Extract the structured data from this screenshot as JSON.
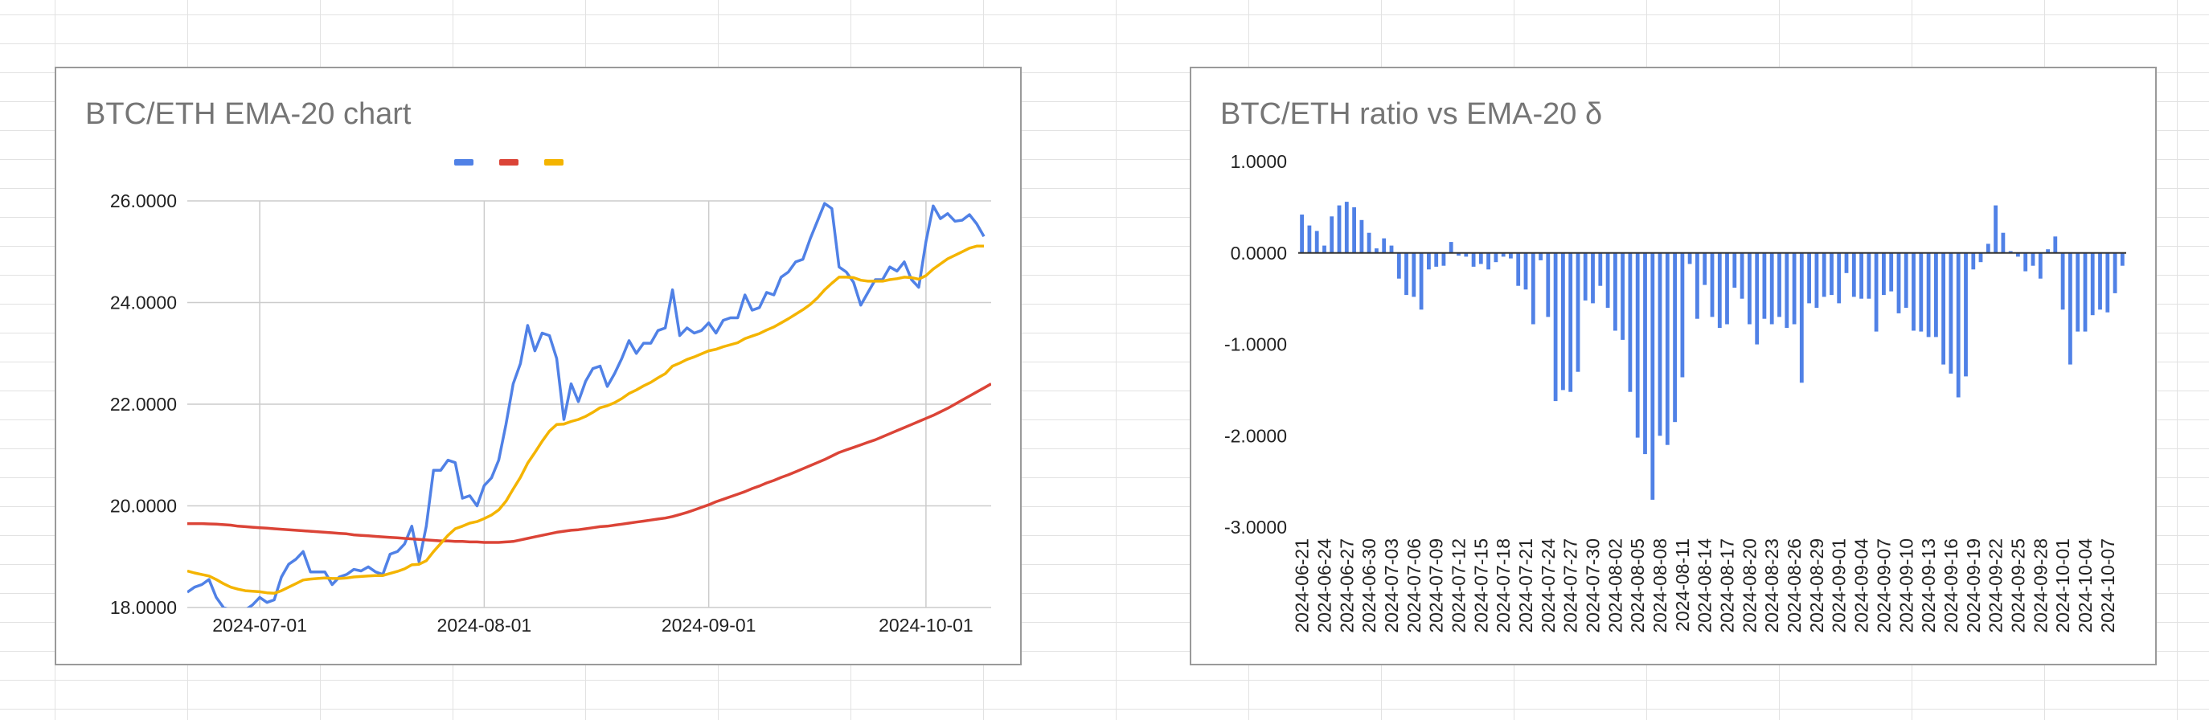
{
  "chart_data": [
    {
      "type": "line",
      "title": "BTC/ETH EMA-20 chart",
      "legend_position": "top-center",
      "legend_text_visible": false,
      "grid": true,
      "ylim": [
        18,
        26
      ],
      "yticks": [
        "18.0000",
        "20.0000",
        "22.0000",
        "24.0000",
        "26.0000"
      ],
      "xlim": [
        "2024-06-21",
        "2024-10-10"
      ],
      "xticks": [
        {
          "date": "2024-07-01",
          "label": "2024-07-01"
        },
        {
          "date": "2024-08-01",
          "label": "2024-08-01"
        },
        {
          "date": "2024-09-01",
          "label": "2024-09-01"
        },
        {
          "date": "2024-10-01",
          "label": "2024-10-01"
        }
      ],
      "dates_start": "2024-06-21",
      "series": [
        {
          "color": "#5081e6",
          "values": [
            18.3,
            18.4,
            18.45,
            18.55,
            18.2,
            18.0,
            17.95,
            17.9,
            17.95,
            18.05,
            18.2,
            18.1,
            18.15,
            18.6,
            18.85,
            18.95,
            19.1,
            18.7,
            18.7,
            18.7,
            18.45,
            18.6,
            18.65,
            18.75,
            18.72,
            18.8,
            18.7,
            18.65,
            19.05,
            19.1,
            19.25,
            19.6,
            18.9,
            19.6,
            20.7,
            20.7,
            20.9,
            20.85,
            20.15,
            20.2,
            20.0,
            20.4,
            20.55,
            20.9,
            21.6,
            22.4,
            22.8,
            23.55,
            23.05,
            23.4,
            23.35,
            22.9,
            21.7,
            22.4,
            22.05,
            22.45,
            22.7,
            22.75,
            22.35,
            22.6,
            22.9,
            23.25,
            23.0,
            23.2,
            23.2,
            23.45,
            23.5,
            24.25,
            23.35,
            23.5,
            23.4,
            23.45,
            23.6,
            23.4,
            23.65,
            23.7,
            23.7,
            24.15,
            23.85,
            23.9,
            24.2,
            24.15,
            24.5,
            24.6,
            24.8,
            24.85,
            25.25,
            25.6,
            25.95,
            25.85,
            24.7,
            24.6,
            24.4,
            23.95,
            24.2,
            24.45,
            24.45,
            24.7,
            24.62,
            24.8,
            24.45,
            24.3,
            25.2,
            25.9,
            25.65,
            25.75,
            25.6,
            25.62,
            25.73,
            25.55,
            25.3
          ],
          "ema_period": null
        },
        {
          "color": "#db4437",
          "values": [
            19.65,
            19.65,
            19.65,
            19.645,
            19.64,
            19.63,
            19.62,
            19.6,
            19.59,
            19.58,
            19.57,
            19.56,
            19.55,
            19.54,
            19.53,
            19.52,
            19.51,
            19.5,
            19.49,
            19.48,
            19.47,
            19.46,
            19.45,
            19.43,
            19.42,
            19.41,
            19.4,
            19.39,
            19.38,
            19.37,
            19.36,
            19.35,
            19.34,
            19.33,
            19.32,
            19.31,
            19.31,
            19.3,
            19.3,
            19.29,
            19.29,
            19.28,
            19.28,
            19.28,
            19.29,
            19.3,
            19.33,
            19.36,
            19.39,
            19.42,
            19.45,
            19.48,
            19.5,
            19.52,
            19.53,
            19.55,
            19.57,
            19.59,
            19.6,
            19.62,
            19.64,
            19.66,
            19.68,
            19.7,
            19.72,
            19.74,
            19.76,
            19.79,
            19.83,
            19.87,
            19.92,
            19.97,
            20.02,
            20.08,
            20.13,
            20.18,
            20.23,
            20.28,
            20.34,
            20.39,
            20.45,
            20.5,
            20.56,
            20.61,
            20.67,
            20.73,
            20.79,
            20.85,
            20.91,
            20.98,
            21.05,
            21.1,
            21.15,
            21.2,
            21.25,
            21.3,
            21.36,
            21.42,
            21.48,
            21.54,
            21.6,
            21.66,
            21.72,
            21.78,
            21.85,
            21.92,
            22.0,
            22.08,
            22.16,
            22.24,
            22.32,
            22.4
          ],
          "ema_period": null
        },
        {
          "color": "#f4b400",
          "values": [
            18.72,
            18.68,
            18.65,
            18.62,
            18.55,
            18.47,
            18.4,
            18.36,
            18.33,
            18.32,
            18.31,
            18.29,
            18.28,
            18.33,
            18.4,
            18.47,
            18.54,
            18.56,
            18.57,
            18.58,
            18.57,
            18.57,
            18.58,
            18.6,
            18.61,
            18.62,
            18.63,
            18.63,
            18.67,
            18.71,
            18.76,
            18.84,
            18.85,
            18.92,
            19.1,
            19.26,
            19.42,
            19.55,
            19.6,
            19.66,
            19.69,
            19.75,
            19.82,
            19.92,
            20.09,
            20.33,
            20.56,
            20.84,
            21.05,
            21.27,
            21.47,
            21.6,
            21.61,
            21.66,
            21.7,
            21.76,
            21.84,
            21.93,
            21.97,
            22.03,
            22.11,
            22.21,
            22.28,
            22.36,
            22.43,
            22.52,
            22.6,
            22.75,
            22.81,
            22.88,
            22.93,
            22.99,
            23.05,
            23.08,
            23.13,
            23.17,
            23.21,
            23.29,
            23.34,
            23.39,
            23.46,
            23.52,
            23.6,
            23.68,
            23.77,
            23.86,
            23.96,
            24.09,
            24.25,
            24.38,
            24.5,
            24.5,
            24.49,
            24.44,
            24.42,
            24.42,
            24.42,
            24.45,
            24.47,
            24.5,
            24.49,
            24.46,
            24.53,
            24.66,
            24.76,
            24.86,
            24.93,
            25.0,
            25.07,
            25.11,
            25.11
          ],
          "ema_period": null
        }
      ]
    },
    {
      "type": "bar",
      "title": "BTC/ETH ratio vs EMA-20 δ",
      "legend_position": "none",
      "ylim": [
        -3,
        1
      ],
      "yticks": [
        "-3.0000",
        "-2.0000",
        "-1.0000",
        "0.0000",
        "1.0000"
      ],
      "dates_start": "2024-06-21",
      "xlabel_every": 3,
      "color": "#5081e6",
      "values": [
        0.42,
        0.3,
        0.24,
        0.08,
        0.4,
        0.52,
        0.56,
        0.5,
        0.36,
        0.22,
        0.05,
        0.16,
        0.08,
        -0.28,
        -0.46,
        -0.48,
        -0.62,
        -0.18,
        -0.15,
        -0.14,
        0.12,
        -0.03,
        -0.04,
        -0.15,
        -0.12,
        -0.18,
        -0.1,
        -0.04,
        -0.06,
        -0.36,
        -0.4,
        -0.78,
        -0.08,
        -0.7,
        -1.62,
        -1.5,
        -1.52,
        -1.3,
        -0.52,
        -0.55,
        -0.36,
        -0.6,
        -0.85,
        -0.95,
        -1.52,
        -2.02,
        -2.2,
        -2.7,
        -2.0,
        -2.1,
        -1.85,
        -1.36,
        -0.12,
        -0.72,
        -0.35,
        -0.7,
        -0.82,
        -0.78,
        -0.38,
        -0.5,
        -0.78,
        -1.0,
        -0.72,
        -0.78,
        -0.7,
        -0.82,
        -0.78,
        -1.42,
        -0.55,
        -0.6,
        -0.48,
        -0.46,
        -0.55,
        -0.22,
        -0.48,
        -0.5,
        -0.5,
        -0.86,
        -0.46,
        -0.42,
        -0.66,
        -0.6,
        -0.85,
        -0.86,
        -0.92,
        -0.92,
        -1.22,
        -1.32,
        -1.58,
        -1.35,
        -0.18,
        -0.1,
        0.1,
        0.52,
        0.22,
        0.02,
        -0.04,
        -0.2,
        -0.14,
        -0.28,
        0.04,
        0.18,
        -0.62,
        -1.22,
        -0.86,
        -0.86,
        -0.68,
        -0.62,
        -0.65,
        -0.44,
        -0.14
      ]
    }
  ]
}
